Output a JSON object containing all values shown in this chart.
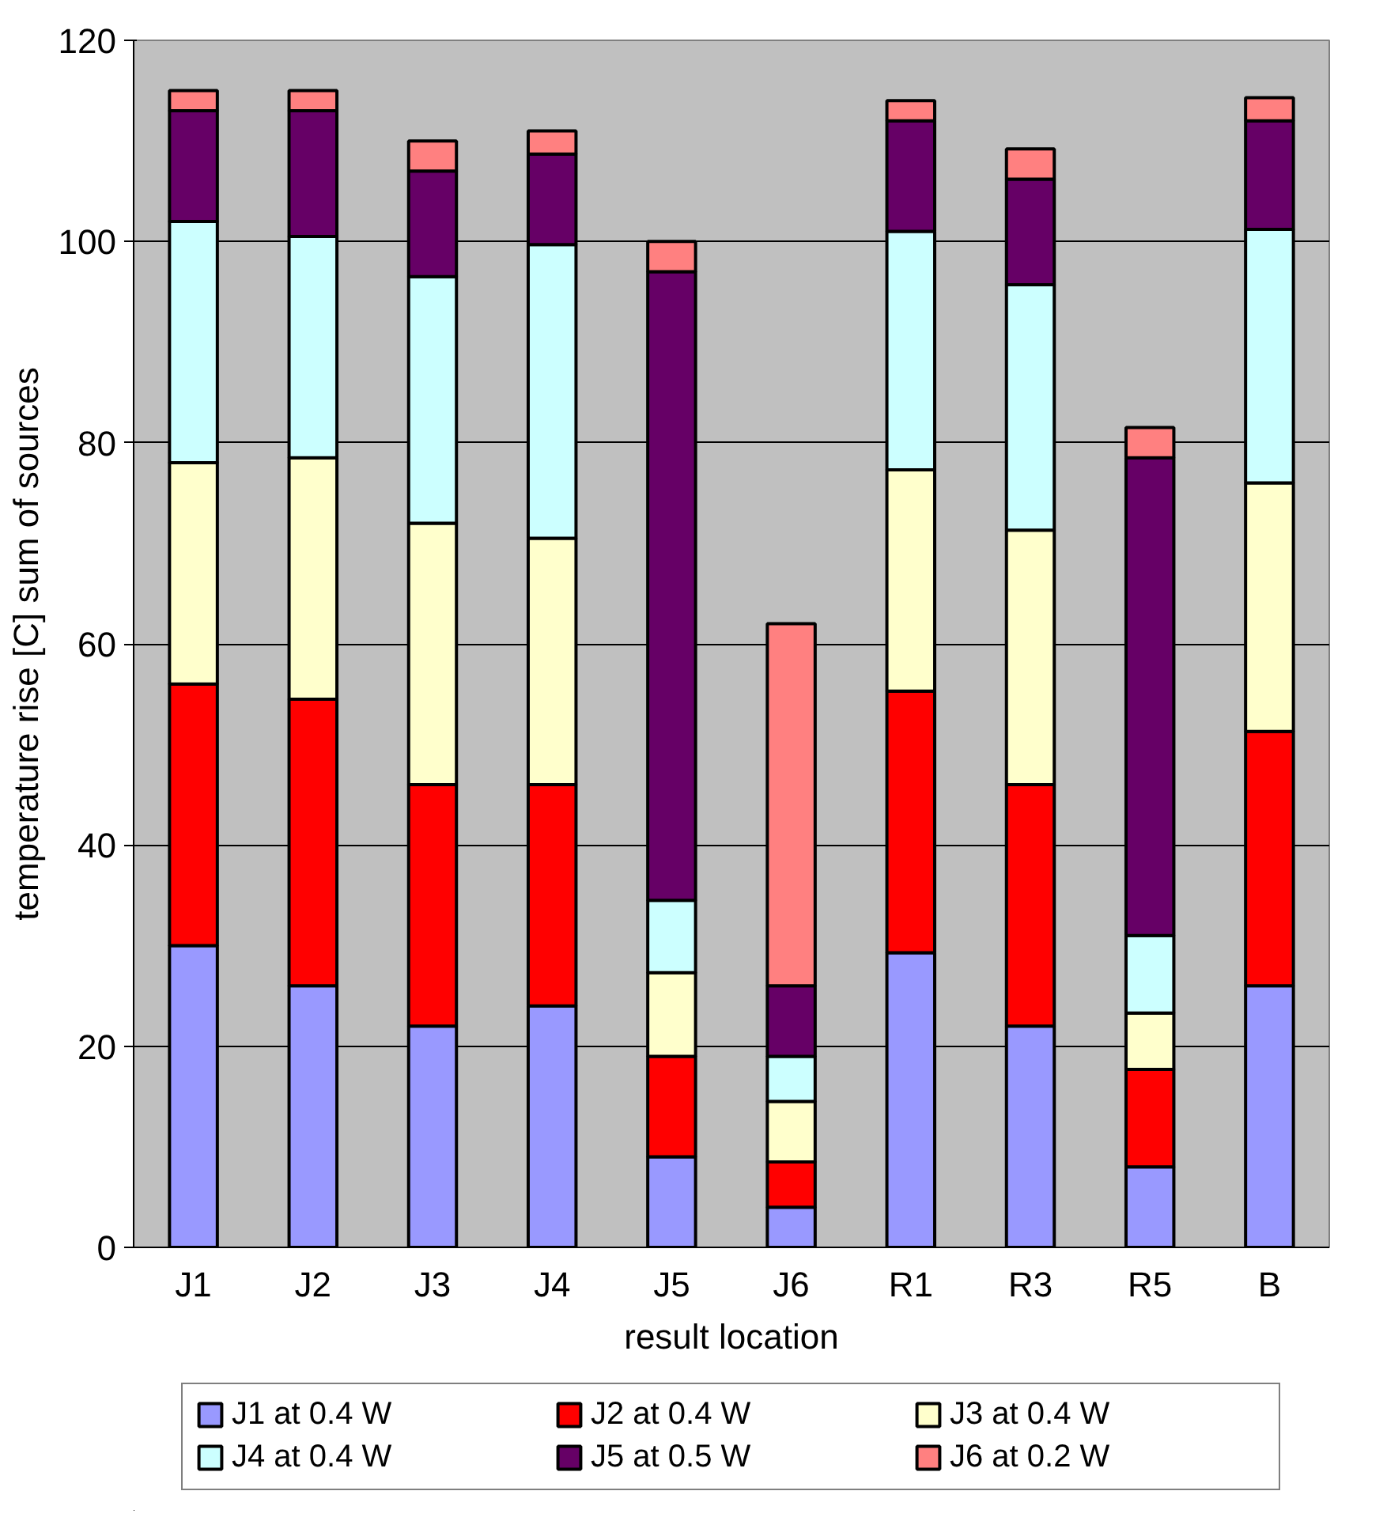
{
  "chart_data": {
    "type": "bar",
    "stacked": true,
    "xlabel": "result location",
    "ylabel": "temperature rise [C] sum of sources",
    "categories": [
      "J1",
      "J2",
      "J3",
      "J4",
      "J5",
      "J6",
      "R1",
      "R3",
      "R5",
      "B"
    ],
    "series": [
      {
        "name": "J1 at 0.4 W",
        "color": "#9999ff",
        "values": [
          30,
          26,
          22,
          24,
          9,
          4,
          29.3,
          22,
          8,
          26
        ]
      },
      {
        "name": "J2 at 0.4 W",
        "color": "#ff0000",
        "values": [
          26,
          28.5,
          24,
          22,
          10,
          4.5,
          26,
          24,
          9.7,
          25.3
        ]
      },
      {
        "name": "J3 at 0.4 W",
        "color": "#ffffcc",
        "values": [
          22,
          24,
          26,
          24.5,
          8.3,
          6,
          22,
          25.3,
          5.6,
          24.7
        ]
      },
      {
        "name": "J4 at 0.4 W",
        "color": "#ccffff",
        "values": [
          24,
          22,
          24.5,
          29.2,
          7.2,
          4.5,
          23.7,
          24.4,
          7.7,
          25.2
        ]
      },
      {
        "name": "J5 at 0.5 W",
        "color": "#660066",
        "values": [
          11,
          12.5,
          10.5,
          9,
          62.5,
          7,
          11,
          10.5,
          47.5,
          10.8
        ]
      },
      {
        "name": "J6 at 0.2 W",
        "color": "#ff8080",
        "values": [
          2,
          2,
          3,
          2.3,
          3,
          36,
          2,
          3,
          3,
          2.3
        ]
      }
    ],
    "ylim": [
      0,
      120
    ],
    "yticks": [
      0,
      20,
      40,
      60,
      80,
      100,
      120
    ],
    "grid": "y",
    "legend": "bottom"
  }
}
